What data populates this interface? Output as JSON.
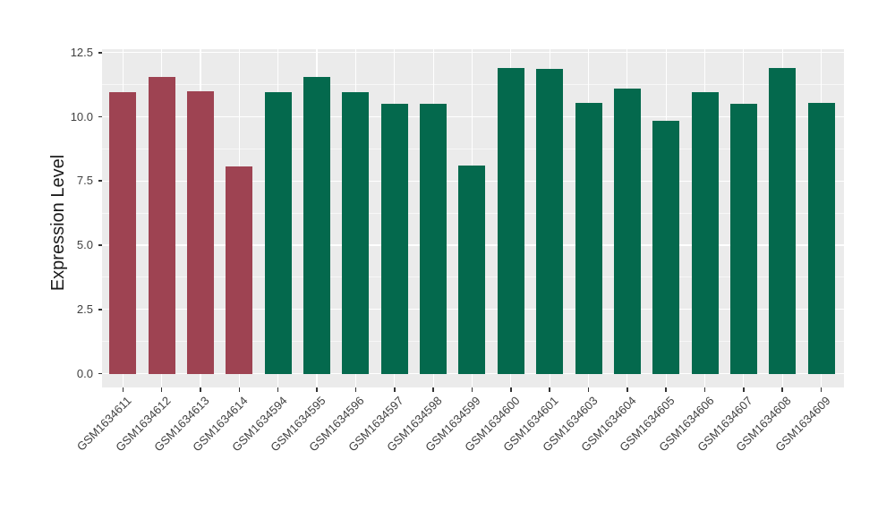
{
  "chart_data": {
    "type": "bar",
    "title": "",
    "xlabel": "",
    "ylabel": "Expression Level",
    "ylim": [
      0,
      12.5
    ],
    "grid": true,
    "legend_position": "none",
    "panel_background": "#EBEBEB",
    "grid_color": "#FFFFFF",
    "axis_text_color": "#404040",
    "axis_title_color": "#1a1a1a",
    "ytick_labels": [
      "0.0",
      "2.5",
      "5.0",
      "7.5",
      "10.0",
      "12.5"
    ],
    "ytick_values": [
      0,
      2.5,
      5,
      7.5,
      10,
      12.5
    ],
    "yminor_values": [
      1.25,
      3.75,
      6.25,
      8.75,
      11.25
    ],
    "categories": [
      "GSM1634611",
      "GSM1634612",
      "GSM1634613",
      "GSM1634614",
      "GSM1634594",
      "GSM1634595",
      "GSM1634596",
      "GSM1634597",
      "GSM1634598",
      "GSM1634599",
      "GSM1634600",
      "GSM1634601",
      "GSM1634603",
      "GSM1634604",
      "GSM1634605",
      "GSM1634606",
      "GSM1634607",
      "GSM1634608",
      "GSM1634609"
    ],
    "values": [
      10.95,
      11.55,
      11.0,
      8.05,
      10.95,
      11.55,
      10.95,
      10.5,
      10.5,
      8.1,
      11.9,
      11.85,
      10.55,
      11.1,
      9.85,
      10.95,
      10.5,
      11.9,
      10.55
    ],
    "bar_groups": [
      "maroon",
      "maroon",
      "maroon",
      "maroon",
      "green",
      "green",
      "green",
      "green",
      "green",
      "green",
      "green",
      "green",
      "green",
      "green",
      "green",
      "green",
      "green",
      "green",
      "green"
    ],
    "group_colors": {
      "maroon": "#9E4352",
      "green": "#04694D"
    }
  }
}
